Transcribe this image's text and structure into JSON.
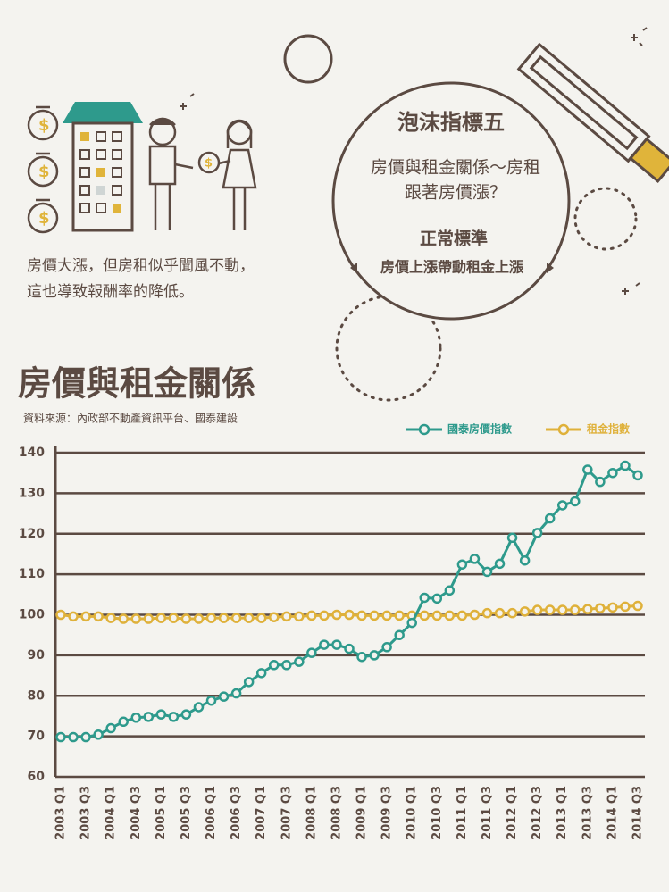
{
  "infographic": {
    "caption_lines": [
      "房價大漲，但房租似乎聞風不動，",
      "這也導致報酬率的降低。"
    ],
    "lens": {
      "heading": "泡沫指標五",
      "question_lines": [
        "房價與租金關係～房租",
        "跟著房價漲？"
      ],
      "standard_title": "正常標準",
      "standard_text": "房價上漲帶動租金上漲"
    }
  },
  "chart_data": {
    "type": "line",
    "title": "房價與租金關係",
    "subtitle": "資料來源：內政部不動產資訊平台、國泰建設",
    "categories": [
      "2003 Q1",
      null,
      "2003 Q3",
      null,
      "2004 Q1",
      null,
      "2004 Q3",
      null,
      "2005 Q1",
      null,
      "2005 Q3",
      null,
      "2006 Q1",
      null,
      "2006 Q3",
      null,
      "2007 Q1",
      null,
      "2007 Q3",
      null,
      "2008 Q1",
      null,
      "2008 Q3",
      null,
      "2009 Q1",
      null,
      "2009 Q3",
      null,
      "2010 Q1",
      null,
      "2010 Q3",
      null,
      "2011 Q1",
      null,
      "2011 Q3",
      null,
      "2012 Q1",
      null,
      "2012 Q3",
      null,
      "2013 Q1",
      null,
      "2013 Q3",
      null,
      "2014 Q1",
      null,
      "2014 Q3"
    ],
    "series": [
      {
        "name": "國泰房價指數",
        "color": "#2e9a8c",
        "values": [
          69.8,
          69.8,
          69.8,
          70.4,
          72,
          73.6,
          74.6,
          74.8,
          75.4,
          74.8,
          75.4,
          77.2,
          78.8,
          79.8,
          80.6,
          83.4,
          85.6,
          87.6,
          87.6,
          88.4,
          90.6,
          92.6,
          92.6,
          91.6,
          89.6,
          90,
          92,
          95,
          98,
          104.2,
          104,
          106,
          112.4,
          113.8,
          110.6,
          112.6,
          119,
          113.4,
          120.2,
          123.8,
          127,
          128,
          135.8,
          132.8,
          135,
          136.8,
          134.4
        ]
      },
      {
        "name": "租金指數",
        "color": "#dfb13a",
        "values": [
          100,
          99.6,
          99.6,
          99.6,
          99.2,
          99,
          99,
          99,
          99.2,
          99.2,
          99,
          99,
          99.2,
          99.2,
          99.2,
          99.2,
          99.2,
          99.4,
          99.6,
          99.6,
          99.8,
          99.8,
          100,
          100,
          99.8,
          99.8,
          99.8,
          99.8,
          99.8,
          99.8,
          99.8,
          99.8,
          99.8,
          100,
          100.4,
          100.4,
          100.4,
          100.8,
          101.2,
          101.2,
          101.2,
          101.2,
          101.4,
          101.6,
          101.8,
          102,
          102.2
        ]
      }
    ],
    "ylim": [
      60,
      140
    ],
    "yticks": [
      60,
      70,
      80,
      90,
      100,
      110,
      120,
      130,
      140
    ],
    "grid": true,
    "legend": "top-right"
  }
}
